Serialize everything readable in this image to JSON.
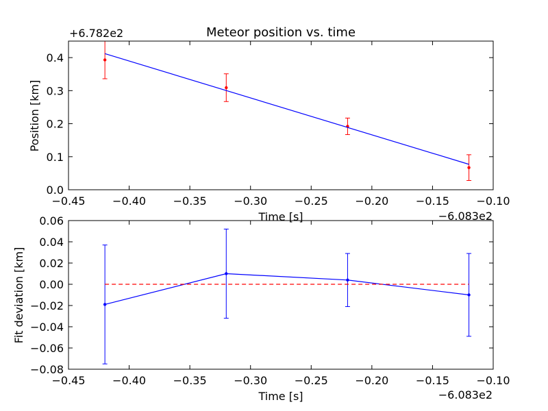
{
  "chart_data": [
    {
      "type": "scatter",
      "title": "Meteor position vs. time",
      "xlabel": "Time [s]",
      "ylabel": "Position [km]",
      "x_offset_label": "−6.083e2",
      "y_offset_label": "+6.782e2",
      "xlim": [
        -0.45,
        -0.1
      ],
      "ylim": [
        0.0,
        0.45
      ],
      "xticks": [
        -0.45,
        -0.4,
        -0.35,
        -0.3,
        -0.25,
        -0.2,
        -0.15,
        -0.1
      ],
      "xtick_labels": [
        "−0.45",
        "−0.40",
        "−0.35",
        "−0.30",
        "−0.25",
        "−0.20",
        "−0.15",
        "−0.10"
      ],
      "yticks": [
        0.0,
        0.1,
        0.2,
        0.3,
        0.4
      ],
      "ytick_labels": [
        "0.0",
        "0.1",
        "0.2",
        "0.3",
        "0.4"
      ],
      "grid": false,
      "series": [
        {
          "kind": "errorbar-points",
          "color": "#ff0000",
          "x": [
            -0.42,
            -0.32,
            -0.22,
            -0.12
          ],
          "y": [
            0.393,
            0.309,
            0.192,
            0.067
          ],
          "yerr": [
            0.057,
            0.042,
            0.025,
            0.039
          ]
        },
        {
          "kind": "fit-line",
          "color": "#0000ff",
          "x": [
            -0.42,
            -0.12
          ],
          "y": [
            0.412,
            0.077
          ]
        }
      ]
    },
    {
      "type": "line",
      "title": "",
      "xlabel": "Time [s]",
      "ylabel": "Fit deviation [km]",
      "x_offset_label": "−6.083e2",
      "xlim": [
        -0.45,
        -0.1
      ],
      "ylim": [
        -0.08,
        0.06
      ],
      "xticks": [
        -0.45,
        -0.4,
        -0.35,
        -0.3,
        -0.25,
        -0.2,
        -0.15,
        -0.1
      ],
      "xtick_labels": [
        "−0.45",
        "−0.40",
        "−0.35",
        "−0.30",
        "−0.25",
        "−0.20",
        "−0.15",
        "−0.10"
      ],
      "yticks": [
        -0.08,
        -0.06,
        -0.04,
        -0.02,
        0.0,
        0.02,
        0.04,
        0.06
      ],
      "ytick_labels": [
        "−0.08",
        "−0.06",
        "−0.04",
        "−0.02",
        "0.00",
        "0.02",
        "0.04",
        "0.06"
      ],
      "grid": false,
      "series": [
        {
          "kind": "errorbar-line",
          "color": "#0000ff",
          "x": [
            -0.42,
            -0.32,
            -0.22,
            -0.12
          ],
          "y": [
            -0.019,
            0.01,
            0.004,
            -0.01
          ],
          "yerr": [
            0.056,
            0.042,
            0.025,
            0.039
          ]
        },
        {
          "kind": "reference-line",
          "color": "#ff0000",
          "style": "dashed",
          "x": [
            -0.42,
            -0.12
          ],
          "y": [
            0.0,
            0.0
          ]
        }
      ]
    }
  ]
}
